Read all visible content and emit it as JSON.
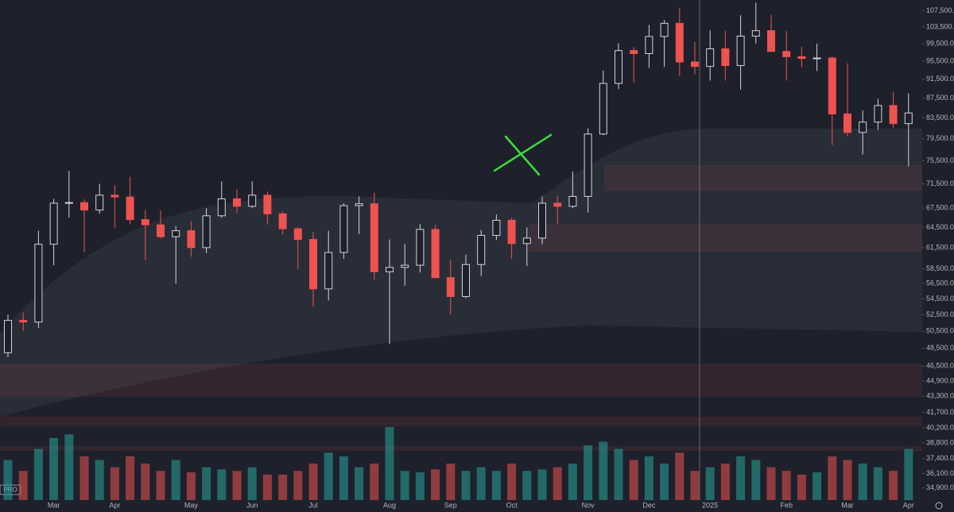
{
  "chart_data": {
    "type": "candlestick",
    "log_scale": true,
    "badge": "PRO",
    "categories": [
      null,
      null,
      null,
      "Mar",
      null,
      null,
      null,
      "Apr",
      null,
      null,
      null,
      null,
      "May",
      null,
      null,
      null,
      "Jun",
      null,
      null,
      null,
      "Jul",
      null,
      null,
      null,
      null,
      "Aug",
      null,
      null,
      null,
      "Sep",
      null,
      null,
      null,
      "Oct",
      null,
      null,
      null,
      null,
      "Nov",
      null,
      null,
      null,
      "Dec",
      null,
      null,
      null,
      "2025",
      null,
      null,
      null,
      null,
      "Feb",
      null,
      null,
      null,
      "Mar",
      null,
      null,
      null,
      "Apr"
    ],
    "open": [
      48000,
      51800,
      51600,
      62000,
      68300,
      68400,
      67200,
      69600,
      69300,
      65700,
      64900,
      63100,
      64000,
      61500,
      66300,
      69000,
      67800,
      69600,
      66600,
      64300,
      62700,
      55800,
      60800,
      67900,
      68200,
      58100,
      58700,
      59000,
      64200,
      57300,
      54800,
      59100,
      63300,
      65600,
      62100,
      62900,
      68300,
      67800,
      69400,
      80400,
      90600,
      97900,
      97200,
      101200,
      104400,
      95300,
      94300,
      98300,
      94500,
      101300,
      102600,
      97700,
      96500,
      96100,
      96200,
      84300,
      80700,
      82700,
      86000,
      82400
    ],
    "high": [
      52500,
      52800,
      64000,
      69000,
      73700,
      68900,
      71500,
      71300,
      72700,
      67200,
      67100,
      64700,
      65500,
      67500,
      71900,
      70600,
      71900,
      70200,
      67000,
      64500,
      63800,
      64000,
      68300,
      69400,
      70000,
      62700,
      62000,
      65000,
      64900,
      59800,
      60500,
      64100,
      66500,
      66000,
      64500,
      69400,
      69500,
      73600,
      81500,
      93400,
      99600,
      98700,
      104000,
      105200,
      108300,
      99900,
      102700,
      102500,
      106400,
      109600,
      106500,
      102500,
      98800,
      99500,
      96500,
      95000,
      85000,
      87400,
      88700,
      88500
    ],
    "low": [
      47500,
      50500,
      50900,
      59000,
      66000,
      60800,
      66600,
      64500,
      65000,
      59700,
      62800,
      56500,
      60200,
      60700,
      66000,
      66700,
      67500,
      65000,
      63400,
      58500,
      53500,
      54300,
      59900,
      63500,
      57000,
      49000,
      56200,
      58000,
      57200,
      52500,
      54600,
      57500,
      62600,
      59900,
      58900,
      62000,
      65000,
      67500,
      66800,
      80200,
      89400,
      90800,
      94000,
      94200,
      92200,
      92500,
      91200,
      91200,
      89300,
      99500,
      97700,
      91200,
      94100,
      93300,
      78300,
      80000,
      76600,
      81200,
      81600,
      74500
    ],
    "close": [
      51800,
      51600,
      62000,
      68300,
      68400,
      67200,
      69600,
      69300,
      65700,
      64900,
      63100,
      64000,
      61500,
      66300,
      69000,
      67800,
      69600,
      66600,
      64300,
      62700,
      55800,
      60800,
      67900,
      68200,
      58100,
      58700,
      59000,
      64200,
      57300,
      54800,
      59100,
      63300,
      65600,
      62100,
      62900,
      68300,
      67800,
      69400,
      80400,
      90600,
      97900,
      97200,
      101200,
      104400,
      95300,
      94300,
      98300,
      94500,
      101300,
      102600,
      97700,
      96500,
      96100,
      96200,
      84300,
      80700,
      82700,
      86000,
      82400,
      84500
    ],
    "volume": [
      55,
      40,
      70,
      85,
      90,
      60,
      55,
      45,
      60,
      50,
      40,
      55,
      38,
      45,
      42,
      40,
      45,
      35,
      35,
      40,
      50,
      65,
      60,
      45,
      50,
      100,
      40,
      38,
      42,
      50,
      40,
      45,
      40,
      50,
      40,
      42,
      45,
      50,
      75,
      80,
      70,
      55,
      60,
      50,
      65,
      40,
      45,
      50,
      60,
      55,
      45,
      40,
      35,
      38,
      60,
      55,
      50,
      45,
      40,
      70
    ],
    "up_color": "#d1d4dc",
    "down_color": "#ef5350",
    "volume_up_color": "#26a69a",
    "volume_down_color": "#ef5350",
    "ylim": [
      33900,
      110300
    ],
    "yticks": [
      {
        "value": 107500,
        "label": "107,500.0"
      },
      {
        "value": 103500,
        "label": "103,500.0"
      },
      {
        "value": 99500,
        "label": "99,500.0"
      },
      {
        "value": 95500,
        "label": "95,500.0"
      },
      {
        "value": 91500,
        "label": "91,500.0"
      },
      {
        "value": 87500,
        "label": "87,500.0"
      },
      {
        "value": 83500,
        "label": "83,500.0"
      },
      {
        "value": 79500,
        "label": "79,500.0"
      },
      {
        "value": 75500,
        "label": "75,500.0"
      },
      {
        "value": 71500,
        "label": "71,500.0"
      },
      {
        "value": 67500,
        "label": "67,500.0"
      },
      {
        "value": 64500,
        "label": "64,500.0"
      },
      {
        "value": 61500,
        "label": "61,500.0"
      },
      {
        "value": 58500,
        "label": "58,500.0"
      },
      {
        "value": 56500,
        "label": "56,500.0"
      },
      {
        "value": 54500,
        "label": "54,500.0"
      },
      {
        "value": 52500,
        "label": "52,500.0"
      },
      {
        "value": 50500,
        "label": "50,500.0"
      },
      {
        "value": 48500,
        "label": "48,500.0"
      },
      {
        "value": 46500,
        "label": "46,500.0"
      },
      {
        "value": 44900,
        "label": "44,900.0"
      },
      {
        "value": 43300,
        "label": "43,300.0"
      },
      {
        "value": 41700,
        "label": "41,700.0"
      },
      {
        "value": 40200,
        "label": "40,200.0"
      },
      {
        "value": 38800,
        "label": "38,800.0"
      },
      {
        "value": 37400,
        "label": "37,400.0"
      },
      {
        "value": 36100,
        "label": "36,100.0"
      },
      {
        "value": 34900,
        "label": "34,900.0"
      }
    ]
  }
}
